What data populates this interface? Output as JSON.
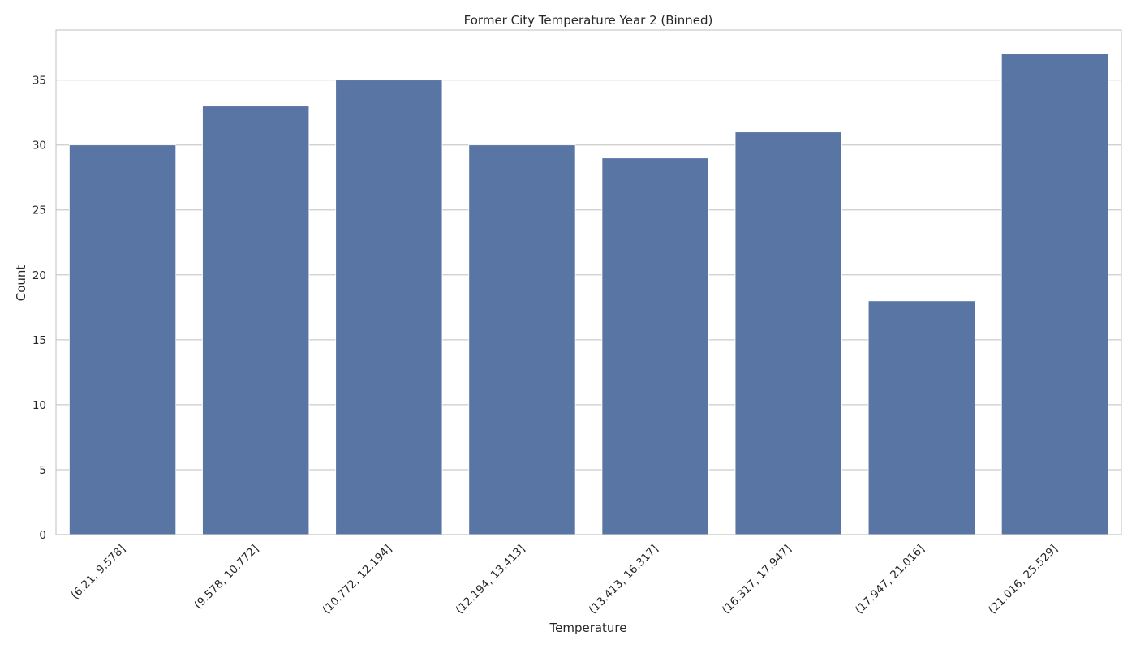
{
  "chart_data": {
    "type": "bar",
    "title": "Former City Temperature Year 2 (Binned)",
    "xlabel": "Temperature",
    "ylabel": "Count",
    "categories": [
      "(6.21, 9.578]",
      "(9.578, 10.772]",
      "(10.772, 12.194]",
      "(12.194, 13.413]",
      "(13.413, 16.317]",
      "(16.317, 17.947]",
      "(17.947, 21.016]",
      "(21.016, 25.529]"
    ],
    "values": [
      30,
      33,
      35,
      30,
      29,
      31,
      18,
      37
    ],
    "ylim": [
      0,
      38.85
    ],
    "yticks": [
      0,
      5,
      10,
      15,
      20,
      25,
      30,
      35
    ],
    "grid": "horizontal",
    "legend": "none",
    "colors": {
      "bar": "#5975a4",
      "grid": "#cccccc",
      "spine": "#cccccc"
    }
  }
}
